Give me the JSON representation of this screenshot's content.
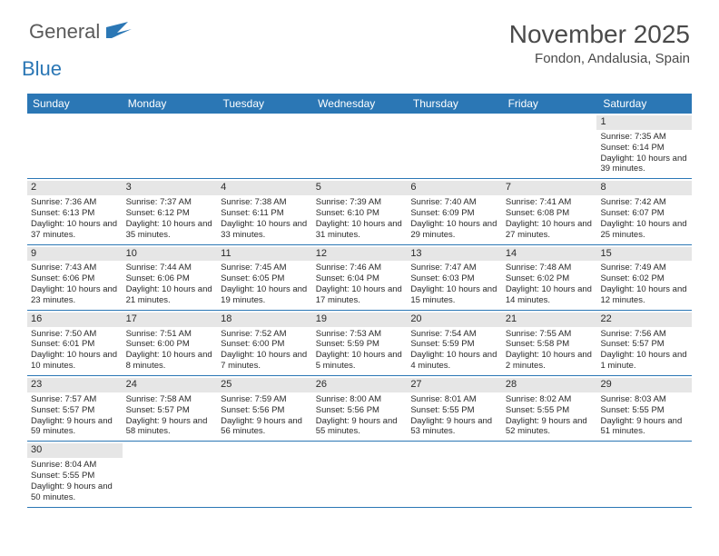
{
  "logo": {
    "text1": "General",
    "text2": "Blue"
  },
  "title": "November 2025",
  "location": "Fondon, Andalusia, Spain",
  "colors": {
    "header_bg": "#2b77b5",
    "header_text": "#ffffff",
    "daynum_bg": "#e6e6e6",
    "cell_border": "#2b77b5",
    "text": "#2a2a2a",
    "logo_gray": "#5a5a5a",
    "logo_blue": "#2b77b5"
  },
  "fonts": {
    "title_size": 28,
    "location_size": 15,
    "dow_size": 12,
    "daynum_size": 11,
    "cell_size": 9.5
  },
  "days_of_week": [
    "Sunday",
    "Monday",
    "Tuesday",
    "Wednesday",
    "Thursday",
    "Friday",
    "Saturday"
  ],
  "weeks": [
    [
      null,
      null,
      null,
      null,
      null,
      null,
      {
        "n": "1",
        "sunrise": "7:35 AM",
        "sunset": "6:14 PM",
        "daylight": "10 hours and 39 minutes."
      }
    ],
    [
      {
        "n": "2",
        "sunrise": "7:36 AM",
        "sunset": "6:13 PM",
        "daylight": "10 hours and 37 minutes."
      },
      {
        "n": "3",
        "sunrise": "7:37 AM",
        "sunset": "6:12 PM",
        "daylight": "10 hours and 35 minutes."
      },
      {
        "n": "4",
        "sunrise": "7:38 AM",
        "sunset": "6:11 PM",
        "daylight": "10 hours and 33 minutes."
      },
      {
        "n": "5",
        "sunrise": "7:39 AM",
        "sunset": "6:10 PM",
        "daylight": "10 hours and 31 minutes."
      },
      {
        "n": "6",
        "sunrise": "7:40 AM",
        "sunset": "6:09 PM",
        "daylight": "10 hours and 29 minutes."
      },
      {
        "n": "7",
        "sunrise": "7:41 AM",
        "sunset": "6:08 PM",
        "daylight": "10 hours and 27 minutes."
      },
      {
        "n": "8",
        "sunrise": "7:42 AM",
        "sunset": "6:07 PM",
        "daylight": "10 hours and 25 minutes."
      }
    ],
    [
      {
        "n": "9",
        "sunrise": "7:43 AM",
        "sunset": "6:06 PM",
        "daylight": "10 hours and 23 minutes."
      },
      {
        "n": "10",
        "sunrise": "7:44 AM",
        "sunset": "6:06 PM",
        "daylight": "10 hours and 21 minutes."
      },
      {
        "n": "11",
        "sunrise": "7:45 AM",
        "sunset": "6:05 PM",
        "daylight": "10 hours and 19 minutes."
      },
      {
        "n": "12",
        "sunrise": "7:46 AM",
        "sunset": "6:04 PM",
        "daylight": "10 hours and 17 minutes."
      },
      {
        "n": "13",
        "sunrise": "7:47 AM",
        "sunset": "6:03 PM",
        "daylight": "10 hours and 15 minutes."
      },
      {
        "n": "14",
        "sunrise": "7:48 AM",
        "sunset": "6:02 PM",
        "daylight": "10 hours and 14 minutes."
      },
      {
        "n": "15",
        "sunrise": "7:49 AM",
        "sunset": "6:02 PM",
        "daylight": "10 hours and 12 minutes."
      }
    ],
    [
      {
        "n": "16",
        "sunrise": "7:50 AM",
        "sunset": "6:01 PM",
        "daylight": "10 hours and 10 minutes."
      },
      {
        "n": "17",
        "sunrise": "7:51 AM",
        "sunset": "6:00 PM",
        "daylight": "10 hours and 8 minutes."
      },
      {
        "n": "18",
        "sunrise": "7:52 AM",
        "sunset": "6:00 PM",
        "daylight": "10 hours and 7 minutes."
      },
      {
        "n": "19",
        "sunrise": "7:53 AM",
        "sunset": "5:59 PM",
        "daylight": "10 hours and 5 minutes."
      },
      {
        "n": "20",
        "sunrise": "7:54 AM",
        "sunset": "5:59 PM",
        "daylight": "10 hours and 4 minutes."
      },
      {
        "n": "21",
        "sunrise": "7:55 AM",
        "sunset": "5:58 PM",
        "daylight": "10 hours and 2 minutes."
      },
      {
        "n": "22",
        "sunrise": "7:56 AM",
        "sunset": "5:57 PM",
        "daylight": "10 hours and 1 minute."
      }
    ],
    [
      {
        "n": "23",
        "sunrise": "7:57 AM",
        "sunset": "5:57 PM",
        "daylight": "9 hours and 59 minutes."
      },
      {
        "n": "24",
        "sunrise": "7:58 AM",
        "sunset": "5:57 PM",
        "daylight": "9 hours and 58 minutes."
      },
      {
        "n": "25",
        "sunrise": "7:59 AM",
        "sunset": "5:56 PM",
        "daylight": "9 hours and 56 minutes."
      },
      {
        "n": "26",
        "sunrise": "8:00 AM",
        "sunset": "5:56 PM",
        "daylight": "9 hours and 55 minutes."
      },
      {
        "n": "27",
        "sunrise": "8:01 AM",
        "sunset": "5:55 PM",
        "daylight": "9 hours and 53 minutes."
      },
      {
        "n": "28",
        "sunrise": "8:02 AM",
        "sunset": "5:55 PM",
        "daylight": "9 hours and 52 minutes."
      },
      {
        "n": "29",
        "sunrise": "8:03 AM",
        "sunset": "5:55 PM",
        "daylight": "9 hours and 51 minutes."
      }
    ],
    [
      {
        "n": "30",
        "sunrise": "8:04 AM",
        "sunset": "5:55 PM",
        "daylight": "9 hours and 50 minutes."
      },
      null,
      null,
      null,
      null,
      null,
      null
    ]
  ],
  "labels": {
    "sunrise_prefix": "Sunrise: ",
    "sunset_prefix": "Sunset: ",
    "daylight_prefix": "Daylight: "
  }
}
